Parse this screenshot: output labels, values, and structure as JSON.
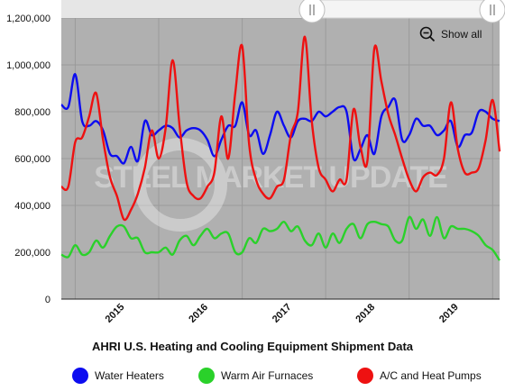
{
  "controls": {
    "show_all_label": "Show all"
  },
  "legend": [
    {
      "label": "Water Heaters",
      "color": "#0c0cf0"
    },
    {
      "label": "Warm Air Furnaces",
      "color": "#2ad12a"
    },
    {
      "label": "A/C and Heat Pumps",
      "color": "#ee1111"
    }
  ],
  "watermark": {
    "text": "STEEL MARKET UPDATE"
  },
  "chart_data": {
    "type": "line",
    "title": "AHRI U.S. Heating and Cooling Equipment Shipment Data",
    "xlabel": "",
    "ylabel": "",
    "x_tick_labels": [
      "2015",
      "2016",
      "2017",
      "2018",
      "2019"
    ],
    "y_ticks": [
      "0",
      "200,000",
      "400,000",
      "600,000",
      "800,000",
      "1,000,000",
      "1,200,000"
    ],
    "ylim": [
      0,
      1200000
    ],
    "x_start": "2014-11",
    "x": [
      "2014-11",
      "2014-12",
      "2015-01",
      "2015-02",
      "2015-03",
      "2015-04",
      "2015-05",
      "2015-06",
      "2015-07",
      "2015-08",
      "2015-09",
      "2015-10",
      "2015-11",
      "2015-12",
      "2016-01",
      "2016-02",
      "2016-03",
      "2016-04",
      "2016-05",
      "2016-06",
      "2016-07",
      "2016-08",
      "2016-09",
      "2016-10",
      "2016-11",
      "2016-12",
      "2017-01",
      "2017-02",
      "2017-03",
      "2017-04",
      "2017-05",
      "2017-06",
      "2017-07",
      "2017-08",
      "2017-09",
      "2017-10",
      "2017-11",
      "2017-12",
      "2018-01",
      "2018-02",
      "2018-03",
      "2018-04",
      "2018-05",
      "2018-06",
      "2018-07",
      "2018-08",
      "2018-09",
      "2018-10",
      "2018-11",
      "2018-12",
      "2019-01",
      "2019-02",
      "2019-03",
      "2019-04",
      "2019-05",
      "2019-06",
      "2019-07",
      "2019-08",
      "2019-09",
      "2019-10",
      "2019-11",
      "2019-12",
      "2020-01",
      "2020-02"
    ],
    "grid": true,
    "background": "#b0b0b0",
    "series": [
      {
        "name": "Water Heaters",
        "color": "#0c0cf0",
        "values": [
          830000,
          820000,
          960000,
          760000,
          740000,
          760000,
          720000,
          620000,
          610000,
          580000,
          650000,
          590000,
          760000,
          700000,
          720000,
          740000,
          730000,
          690000,
          720000,
          730000,
          720000,
          680000,
          610000,
          680000,
          740000,
          740000,
          840000,
          700000,
          720000,
          620000,
          700000,
          800000,
          740000,
          690000,
          760000,
          770000,
          760000,
          800000,
          780000,
          800000,
          820000,
          800000,
          600000,
          640000,
          700000,
          620000,
          780000,
          820000,
          850000,
          680000,
          700000,
          770000,
          740000,
          740000,
          700000,
          720000,
          760000,
          650000,
          700000,
          710000,
          800000,
          800000,
          770000,
          760000
        ]
      },
      {
        "name": "Warm Air Furnaces",
        "color": "#2ad12a",
        "values": [
          190000,
          180000,
          230000,
          190000,
          200000,
          250000,
          220000,
          270000,
          310000,
          310000,
          260000,
          260000,
          200000,
          200000,
          200000,
          220000,
          190000,
          250000,
          270000,
          230000,
          270000,
          300000,
          260000,
          280000,
          280000,
          200000,
          200000,
          260000,
          240000,
          300000,
          290000,
          300000,
          330000,
          290000,
          310000,
          250000,
          230000,
          280000,
          220000,
          280000,
          240000,
          300000,
          320000,
          260000,
          320000,
          330000,
          320000,
          310000,
          250000,
          250000,
          350000,
          300000,
          340000,
          270000,
          350000,
          260000,
          310000,
          300000,
          300000,
          290000,
          270000,
          230000,
          210000,
          165000
        ]
      },
      {
        "name": "A/C and Heat Pumps",
        "color": "#ee1111",
        "values": [
          480000,
          480000,
          670000,
          690000,
          780000,
          880000,
          680000,
          520000,
          440000,
          340000,
          380000,
          450000,
          560000,
          720000,
          600000,
          730000,
          1020000,
          740000,
          500000,
          440000,
          430000,
          480000,
          540000,
          780000,
          600000,
          880000,
          1080000,
          660000,
          510000,
          450000,
          430000,
          480000,
          510000,
          700000,
          800000,
          1120000,
          760000,
          560000,
          510000,
          460000,
          510000,
          510000,
          810000,
          650000,
          590000,
          1070000,
          930000,
          790000,
          700000,
          600000,
          510000,
          460000,
          520000,
          540000,
          530000,
          600000,
          840000,
          640000,
          540000,
          540000,
          560000,
          680000,
          850000,
          630000
        ]
      }
    ]
  }
}
